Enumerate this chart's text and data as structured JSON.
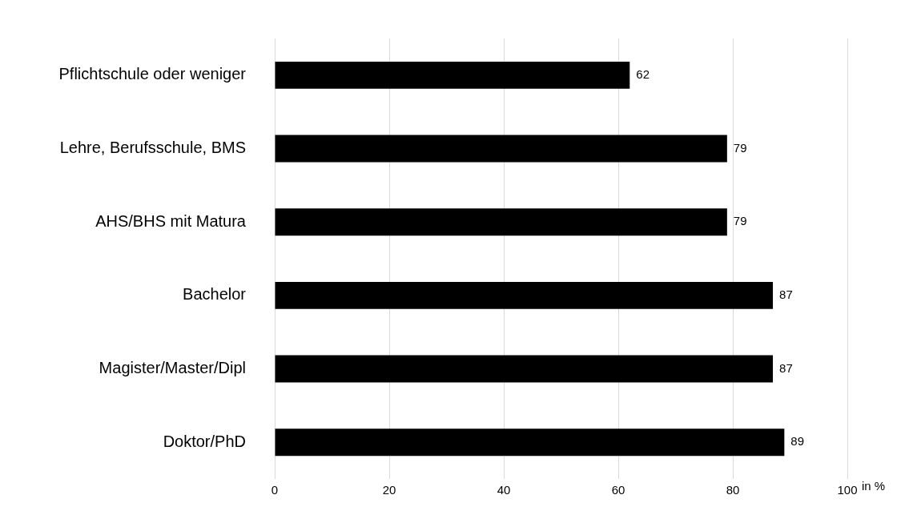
{
  "chart_data": {
    "type": "bar",
    "orientation": "horizontal",
    "xlabel": "in %",
    "categories": [
      "Pflichtschule oder weniger",
      "Lehre, Berufsschule, BMS",
      "AHS/BHS mit Matura",
      "Bachelor",
      "Magister/Master/Dipl",
      "Doktor/PhD"
    ],
    "values": [
      62,
      79,
      79,
      87,
      87,
      89
    ],
    "color": "#000000",
    "xlim": [
      0,
      100
    ],
    "xticks": [
      0,
      20,
      40,
      60,
      80,
      100
    ],
    "grid": "x",
    "data_labels": true,
    "legend": false
  }
}
